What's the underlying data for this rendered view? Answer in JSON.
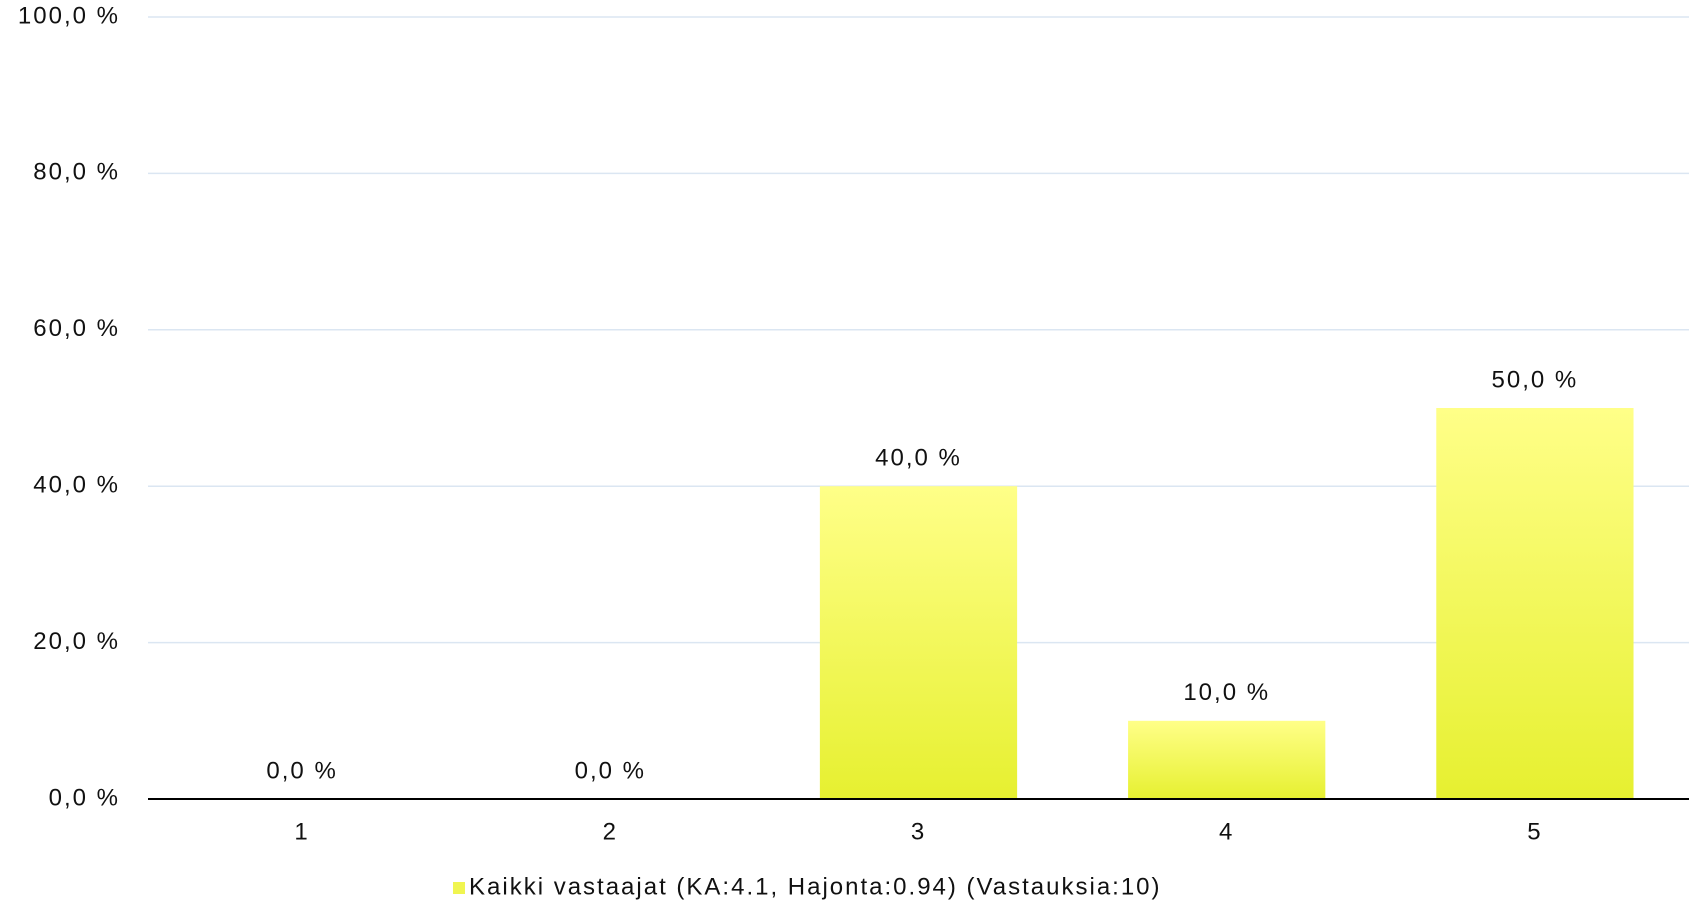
{
  "chart_data": {
    "type": "bar",
    "categories": [
      "1",
      "2",
      "3",
      "4",
      "5"
    ],
    "series": [
      {
        "name": "Kaikki vastaajat (KA:4.1, Hajonta:0.94) (Vastauksia:10)",
        "color": "#f0f550",
        "values": [
          0,
          0,
          40,
          10,
          50
        ],
        "value_labels": [
          "0,0 %",
          "0,0 %",
          "40,0 %",
          "10,0 %",
          "50,0 %"
        ]
      }
    ],
    "ylim": [
      0,
      100
    ],
    "yticks": [
      {
        "value": 0,
        "label": "0,0 %"
      },
      {
        "value": 20,
        "label": "20,0 %"
      },
      {
        "value": 40,
        "label": "40,0 %"
      },
      {
        "value": 60,
        "label": "60,0 %"
      },
      {
        "value": 80,
        "label": "80,0 %"
      },
      {
        "value": 100,
        "label": "100,0 %"
      }
    ],
    "grid": true,
    "legend": "bottom"
  }
}
